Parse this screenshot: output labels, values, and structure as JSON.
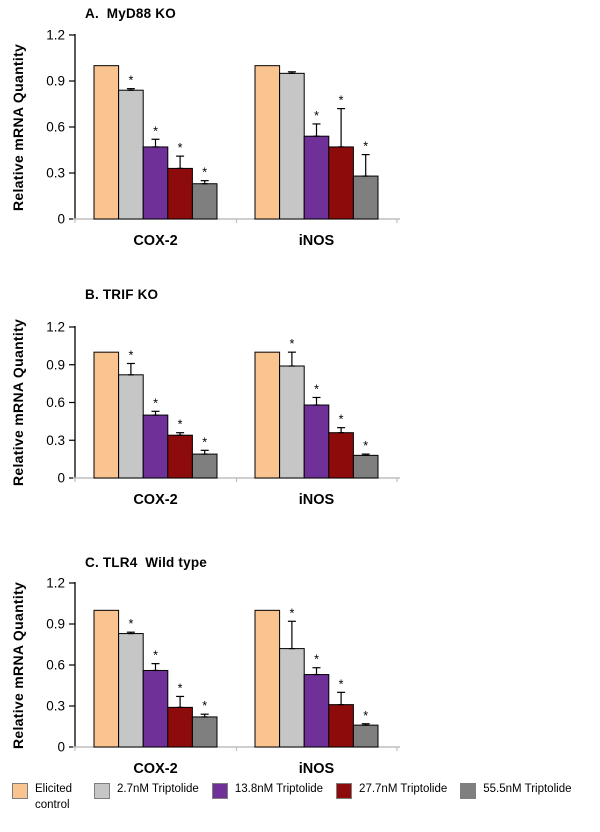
{
  "figure": {
    "legend": {
      "items": [
        {
          "label": "Elicited control",
          "color": "#FAC491"
        },
        {
          "label": "2.7nM Triptolide",
          "color": "#C6C6C6"
        },
        {
          "label": "13.8nM Triptolide",
          "color": "#6F3198"
        },
        {
          "label": "27.7nM Triptolide",
          "color": "#8E0B0B"
        },
        {
          "label": "55.5nM Triptolide",
          "color": "#7F7F7F"
        }
      ]
    }
  },
  "chart_data": [
    {
      "type": "bar",
      "title": "A.  MyD88 KO",
      "ylabel": "Relative mRNA Quantity",
      "ylim": [
        0,
        1.2
      ],
      "yticks": [
        0,
        0.3,
        0.6,
        0.9,
        1.2
      ],
      "categories": [
        "COX-2",
        "iNOS"
      ],
      "significance_marker": "*",
      "legend_position": "none",
      "grid": false,
      "series": [
        {
          "name": "Elicited control",
          "color": "#FAC491",
          "values": [
            1.0,
            1.0
          ],
          "errors": [
            0,
            0
          ],
          "significant": [
            false,
            false
          ]
        },
        {
          "name": "2.7nM Triptolide",
          "color": "#C6C6C6",
          "values": [
            0.84,
            0.95
          ],
          "errors": [
            0.01,
            0.01
          ],
          "significant": [
            true,
            false
          ]
        },
        {
          "name": "13.8nM Triptolide",
          "color": "#6F3198",
          "values": [
            0.47,
            0.54
          ],
          "errors": [
            0.05,
            0.08
          ],
          "significant": [
            true,
            true
          ]
        },
        {
          "name": "27.7nM Triptolide",
          "color": "#8E0B0B",
          "values": [
            0.33,
            0.47
          ],
          "errors": [
            0.08,
            0.25
          ],
          "significant": [
            true,
            true
          ]
        },
        {
          "name": "55.5nM Triptolide",
          "color": "#7F7F7F",
          "values": [
            0.23,
            0.28
          ],
          "errors": [
            0.02,
            0.14
          ],
          "significant": [
            true,
            true
          ]
        }
      ]
    },
    {
      "type": "bar",
      "title": "B. TRIF KO",
      "ylabel": "Relative mRNA Quantity",
      "ylim": [
        0,
        1.2
      ],
      "yticks": [
        0,
        0.3,
        0.6,
        0.9,
        1.2
      ],
      "categories": [
        "COX-2",
        "iNOS"
      ],
      "significance_marker": "*",
      "legend_position": "none",
      "grid": false,
      "series": [
        {
          "name": "Elicited control",
          "color": "#FAC491",
          "values": [
            1.0,
            1.0
          ],
          "errors": [
            0,
            0
          ],
          "significant": [
            false,
            false
          ]
        },
        {
          "name": "2.7nM Triptolide",
          "color": "#C6C6C6",
          "values": [
            0.82,
            0.89
          ],
          "errors": [
            0.09,
            0.11
          ],
          "significant": [
            true,
            true
          ]
        },
        {
          "name": "13.8nM Triptolide",
          "color": "#6F3198",
          "values": [
            0.5,
            0.58
          ],
          "errors": [
            0.03,
            0.06
          ],
          "significant": [
            true,
            true
          ]
        },
        {
          "name": "27.7nM Triptolide",
          "color": "#8E0B0B",
          "values": [
            0.34,
            0.36
          ],
          "errors": [
            0.02,
            0.04
          ],
          "significant": [
            true,
            true
          ]
        },
        {
          "name": "55.5nM Triptolide",
          "color": "#7F7F7F",
          "values": [
            0.19,
            0.18
          ],
          "errors": [
            0.03,
            0.01
          ],
          "significant": [
            true,
            true
          ]
        }
      ]
    },
    {
      "type": "bar",
      "title": "C. TLR4  Wild type",
      "ylabel": "Relative mRNA Quantity",
      "ylim": [
        0,
        1.2
      ],
      "yticks": [
        0,
        0.3,
        0.6,
        0.9,
        1.2
      ],
      "categories": [
        "COX-2",
        "iNOS"
      ],
      "significance_marker": "*",
      "legend_position": "none",
      "grid": false,
      "series": [
        {
          "name": "Elicited control",
          "color": "#FAC491",
          "values": [
            1.0,
            1.0
          ],
          "errors": [
            0,
            0
          ],
          "significant": [
            false,
            false
          ]
        },
        {
          "name": "2.7nM Triptolide",
          "color": "#C6C6C6",
          "values": [
            0.83,
            0.72
          ],
          "errors": [
            0.01,
            0.2
          ],
          "significant": [
            true,
            true
          ]
        },
        {
          "name": "13.8nM Triptolide",
          "color": "#6F3198",
          "values": [
            0.56,
            0.53
          ],
          "errors": [
            0.05,
            0.05
          ],
          "significant": [
            true,
            true
          ]
        },
        {
          "name": "27.7nM Triptolide",
          "color": "#8E0B0B",
          "values": [
            0.29,
            0.31
          ],
          "errors": [
            0.08,
            0.09
          ],
          "significant": [
            true,
            true
          ]
        },
        {
          "name": "55.5nM Triptolide",
          "color": "#7F7F7F",
          "values": [
            0.22,
            0.16
          ],
          "errors": [
            0.02,
            0.01
          ],
          "significant": [
            true,
            true
          ]
        }
      ]
    }
  ]
}
